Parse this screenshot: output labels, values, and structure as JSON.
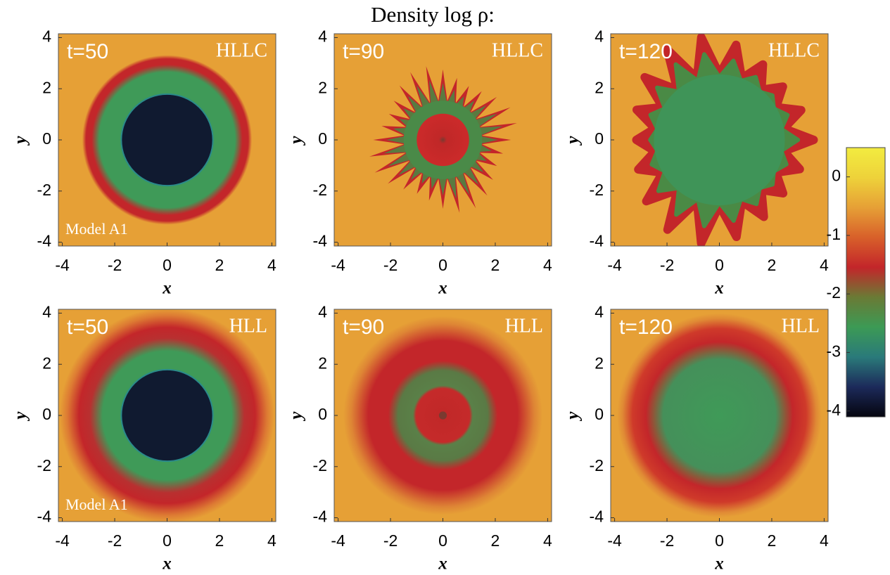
{
  "title": "Density log ρ:",
  "chart_data": [
    {
      "type": "heatmap",
      "time_label": "t=50",
      "scheme_label": "HLLC",
      "model_label": "Model A1",
      "xlabel": "x",
      "ylabel": "y",
      "xlim": [
        -4.15,
        4.15
      ],
      "ylim": [
        -4.15,
        4.15
      ],
      "xticks": [
        -4,
        -2,
        0,
        2,
        4
      ],
      "yticks": [
        -4,
        -2,
        0,
        2,
        4
      ]
    },
    {
      "type": "heatmap",
      "time_label": "t=90",
      "scheme_label": "HLLC",
      "xlabel": "x",
      "ylabel": "y",
      "xlim": [
        -4.15,
        4.15
      ],
      "ylim": [
        -4.15,
        4.15
      ],
      "xticks": [
        -4,
        -2,
        0,
        2,
        4
      ],
      "yticks": [
        -4,
        -2,
        0,
        2,
        4
      ]
    },
    {
      "type": "heatmap",
      "time_label": "t=120",
      "scheme_label": "HLLC",
      "xlabel": "x",
      "ylabel": "y",
      "xlim": [
        -4.15,
        4.15
      ],
      "ylim": [
        -4.15,
        4.15
      ],
      "xticks": [
        -4,
        -2,
        0,
        2,
        4
      ],
      "yticks": [
        -4,
        -2,
        0,
        2,
        4
      ]
    },
    {
      "type": "heatmap",
      "time_label": "t=50",
      "scheme_label": "HLL",
      "model_label": "Model A1",
      "xlabel": "x",
      "ylabel": "y",
      "xlim": [
        -4.15,
        4.15
      ],
      "ylim": [
        -4.15,
        4.15
      ],
      "xticks": [
        -4,
        -2,
        0,
        2,
        4
      ],
      "yticks": [
        -4,
        -2,
        0,
        2,
        4
      ]
    },
    {
      "type": "heatmap",
      "time_label": "t=90",
      "scheme_label": "HLL",
      "xlabel": "x",
      "ylabel": "y",
      "xlim": [
        -4.15,
        4.15
      ],
      "ylim": [
        -4.15,
        4.15
      ],
      "xticks": [
        -4,
        -2,
        0,
        2,
        4
      ],
      "yticks": [
        -4,
        -2,
        0,
        2,
        4
      ]
    },
    {
      "type": "heatmap",
      "time_label": "t=120",
      "scheme_label": "HLL",
      "xlabel": "x",
      "ylabel": "y",
      "xlim": [
        -4.15,
        4.15
      ],
      "ylim": [
        -4.15,
        4.15
      ],
      "xticks": [
        -4,
        -2,
        0,
        2,
        4
      ],
      "yticks": [
        -4,
        -2,
        0,
        2,
        4
      ]
    },
    {
      "type": "colorbar",
      "ylim": [
        -4.1,
        0.5
      ],
      "yticks": [
        -4,
        -3,
        -2,
        -1,
        0
      ],
      "colors": [
        "#05050f",
        "#1c2a5a",
        "#2a7a7a",
        "#3c9a55",
        "#6a7a35",
        "#c3262a",
        "#d8602a",
        "#e6a036",
        "#eed23a",
        "#f2ec40"
      ]
    }
  ]
}
